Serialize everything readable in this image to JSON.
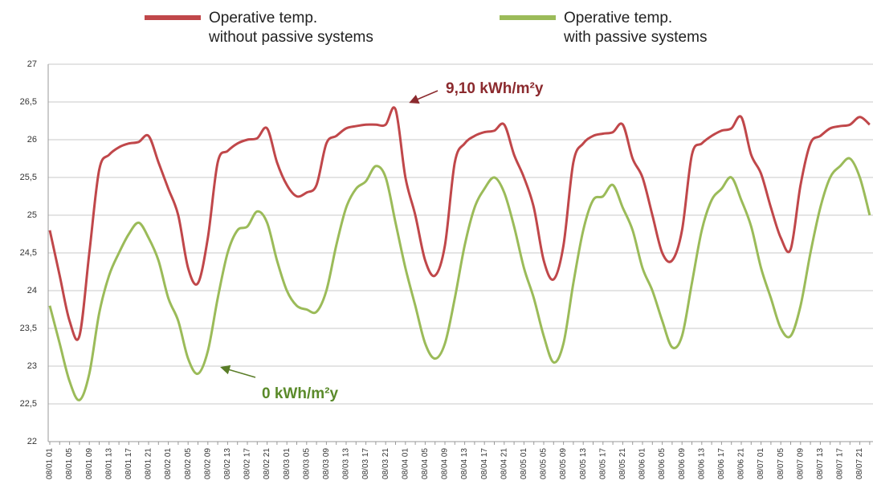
{
  "chart_data": {
    "type": "line",
    "annotations": [
      "9,10 kWh/m²y",
      "0 kWh/m²y"
    ],
    "categories": [
      "08/01 01",
      null,
      "08/01 05",
      null,
      "08/01 09",
      null,
      "08/01 13",
      null,
      "08/01 17",
      null,
      "08/01 21",
      null,
      "08/02 01",
      null,
      "08/02 05",
      null,
      "08/02 09",
      null,
      "08/02 13",
      null,
      "08/02 17",
      null,
      "08/02 21",
      null,
      "08/03 01",
      null,
      "08/03 05",
      null,
      "08/03 09",
      null,
      "08/03 13",
      null,
      "08/03 17",
      null,
      "08/03 21",
      null,
      "08/04 01",
      null,
      "08/04 05",
      null,
      "08/04 09",
      null,
      "08/04 13",
      null,
      "08/04 17",
      null,
      "08/04 21",
      null,
      "08/05 01",
      null,
      "08/05 05",
      null,
      "08/05 09",
      null,
      "08/05 13",
      null,
      "08/05 17",
      null,
      "08/05 21",
      null,
      "08/06 01",
      null,
      "08/06 05",
      null,
      "08/06 09",
      null,
      "08/06 13",
      null,
      "08/06 17",
      null,
      "08/06 21",
      null,
      "08/07 01",
      null,
      "08/07 05",
      null,
      "08/07 09",
      null,
      "08/07 13",
      null,
      "08/07 17",
      null,
      "08/07 21",
      null
    ],
    "series": [
      {
        "name": [
          "Operative  temp.",
          "without passive systems"
        ],
        "color": "#c0474a",
        "values": [
          24.8,
          24.2,
          23.6,
          23.4,
          24.5,
          25.6,
          25.8,
          25.9,
          25.95,
          25.97,
          26.05,
          25.7,
          25.35,
          25.0,
          24.3,
          24.1,
          24.7,
          25.7,
          25.85,
          25.95,
          26.0,
          26.02,
          26.15,
          25.7,
          25.4,
          25.25,
          25.3,
          25.4,
          25.95,
          26.05,
          26.15,
          26.18,
          26.2,
          26.2,
          26.2,
          26.4,
          25.5,
          25.0,
          24.4,
          24.2,
          24.6,
          25.7,
          25.95,
          26.05,
          26.1,
          26.12,
          26.2,
          25.8,
          25.5,
          25.1,
          24.4,
          24.15,
          24.6,
          25.7,
          25.95,
          26.05,
          26.08,
          26.1,
          26.2,
          25.75,
          25.5,
          25.0,
          24.5,
          24.4,
          24.8,
          25.8,
          25.95,
          26.05,
          26.12,
          26.15,
          26.3,
          25.8,
          25.55,
          25.1,
          24.7,
          24.55,
          25.4,
          25.95,
          26.05,
          26.15,
          26.18,
          26.2,
          26.3,
          26.2
        ]
      },
      {
        "name": [
          "Operative  temp.",
          "with passive systems"
        ],
        "color": "#9bbb59",
        "values": [
          23.8,
          23.3,
          22.8,
          22.55,
          22.9,
          23.7,
          24.2,
          24.5,
          24.75,
          24.9,
          24.7,
          24.4,
          23.9,
          23.6,
          23.1,
          22.9,
          23.2,
          23.9,
          24.5,
          24.8,
          24.85,
          25.05,
          24.9,
          24.4,
          24.0,
          23.8,
          23.75,
          23.72,
          24.0,
          24.6,
          25.1,
          25.35,
          25.45,
          25.65,
          25.5,
          24.9,
          24.3,
          23.8,
          23.3,
          23.1,
          23.3,
          23.9,
          24.6,
          25.1,
          25.35,
          25.5,
          25.3,
          24.85,
          24.3,
          23.9,
          23.4,
          23.05,
          23.3,
          24.1,
          24.8,
          25.2,
          25.25,
          25.4,
          25.1,
          24.8,
          24.3,
          24.0,
          23.6,
          23.25,
          23.4,
          24.1,
          24.8,
          25.2,
          25.35,
          25.5,
          25.2,
          24.85,
          24.3,
          23.9,
          23.5,
          23.4,
          23.8,
          24.5,
          25.1,
          25.5,
          25.65,
          25.75,
          25.5,
          25.0
        ]
      }
    ],
    "ylim": [
      22,
      27
    ],
    "yticks": [
      22,
      {
        "value": 22.5,
        "label": "22,5"
      },
      23,
      {
        "value": 23.5,
        "label": "23,5"
      },
      24,
      {
        "value": 24.5,
        "label": "24,5"
      },
      25,
      {
        "value": 25.5,
        "label": "25,5"
      },
      26,
      {
        "value": 26.5,
        "label": "26,5"
      },
      27
    ],
    "grid": true
  }
}
